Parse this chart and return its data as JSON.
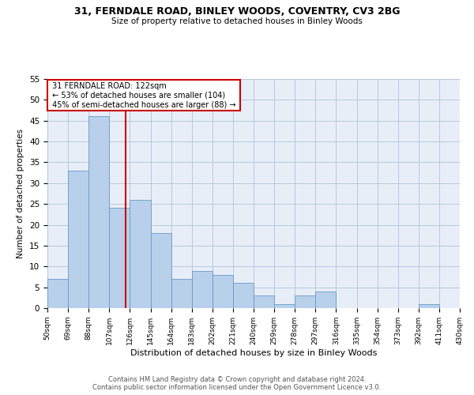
{
  "title1": "31, FERNDALE ROAD, BINLEY WOODS, COVENTRY, CV3 2BG",
  "title2": "Size of property relative to detached houses in Binley Woods",
  "xlabel": "Distribution of detached houses by size in Binley Woods",
  "ylabel": "Number of detached properties",
  "footer1": "Contains HM Land Registry data © Crown copyright and database right 2024.",
  "footer2": "Contains public sector information licensed under the Open Government Licence v3.0.",
  "annotation_title": "31 FERNDALE ROAD: 122sqm",
  "annotation_line1": "← 53% of detached houses are smaller (104)",
  "annotation_line2": "45% of semi-detached houses are larger (88) →",
  "property_size": 122,
  "bin_edges": [
    50,
    69,
    88,
    107,
    126,
    145,
    164,
    183,
    202,
    221,
    240,
    259,
    278,
    297,
    316,
    335,
    354,
    373,
    392,
    411,
    430
  ],
  "bar_values": [
    7,
    33,
    46,
    24,
    26,
    18,
    7,
    9,
    8,
    6,
    3,
    1,
    3,
    4,
    0,
    0,
    0,
    0,
    1,
    0
  ],
  "bar_color": "#b8d0ea",
  "bar_edge_color": "#6699cc",
  "ref_line_color": "#cc0000",
  "ref_line_x": 122,
  "annotation_box_color": "#cc0000",
  "bg_color": "#e8eef8",
  "grid_color": "#b8c8dc",
  "ylim": [
    0,
    55
  ],
  "yticks": [
    0,
    5,
    10,
    15,
    20,
    25,
    30,
    35,
    40,
    45,
    50,
    55
  ]
}
